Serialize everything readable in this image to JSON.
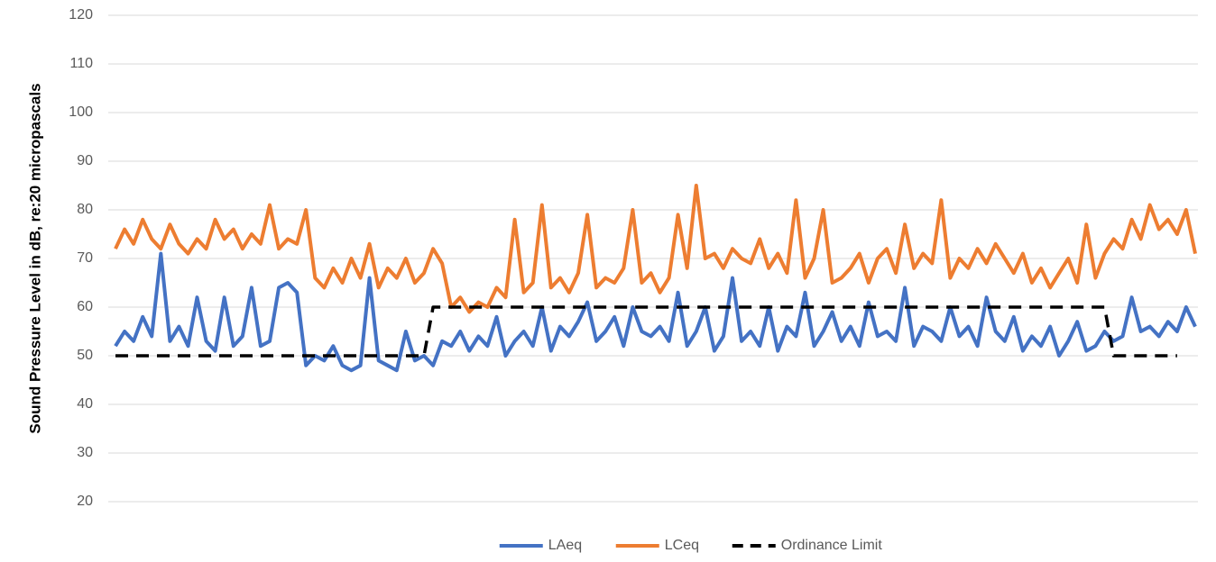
{
  "chart_data": {
    "type": "line",
    "ylabel": "Sound Pressure Level in dB, re:20 micropascals",
    "ylim": [
      20,
      120
    ],
    "yticks": [
      20,
      30,
      40,
      50,
      60,
      70,
      80,
      90,
      100,
      110,
      120
    ],
    "grid": true,
    "legend": "bottom",
    "series": [
      {
        "name": "LAeq",
        "color": "#4472c4",
        "values": [
          52,
          55,
          53,
          58,
          54,
          71,
          53,
          56,
          52,
          62,
          53,
          51,
          62,
          52,
          54,
          64,
          52,
          53,
          64,
          65,
          63,
          48,
          50,
          49,
          52,
          48,
          47,
          48,
          66,
          49,
          48,
          47,
          55,
          49,
          50,
          48,
          53,
          52,
          55,
          51,
          54,
          52,
          58,
          50,
          53,
          55,
          52,
          60,
          51,
          56,
          54,
          57,
          61,
          53,
          55,
          58,
          52,
          60,
          55,
          54,
          56,
          53,
          63,
          52,
          55,
          60,
          51,
          54,
          66,
          53,
          55,
          52,
          60,
          51,
          56,
          54,
          63,
          52,
          55,
          59,
          53,
          56,
          52,
          61,
          54,
          55,
          53,
          64,
          52,
          56,
          55,
          53,
          60,
          54,
          56,
          52,
          62,
          55,
          53,
          58,
          51,
          54,
          52,
          56,
          50,
          53,
          57,
          51,
          52,
          55,
          53,
          54,
          62,
          55,
          56,
          54,
          57,
          55,
          60,
          56
        ]
      },
      {
        "name": "LCeq",
        "color": "#ed7d31",
        "values": [
          72,
          76,
          73,
          78,
          74,
          72,
          77,
          73,
          71,
          74,
          72,
          78,
          74,
          76,
          72,
          75,
          73,
          81,
          72,
          74,
          73,
          80,
          66,
          64,
          68,
          65,
          70,
          66,
          73,
          64,
          68,
          66,
          70,
          65,
          67,
          72,
          69,
          60,
          62,
          59,
          61,
          60,
          64,
          62,
          78,
          63,
          65,
          81,
          64,
          66,
          63,
          67,
          79,
          64,
          66,
          65,
          68,
          80,
          65,
          67,
          63,
          66,
          79,
          68,
          85,
          70,
          71,
          68,
          72,
          70,
          69,
          74,
          68,
          71,
          67,
          82,
          66,
          70,
          80,
          65,
          66,
          68,
          71,
          65,
          70,
          72,
          67,
          77,
          68,
          71,
          69,
          82,
          66,
          70,
          68,
          72,
          69,
          73,
          70,
          67,
          71,
          65,
          68,
          64,
          67,
          70,
          65,
          77,
          66,
          71,
          74,
          72,
          78,
          74,
          81,
          76,
          78,
          75,
          80,
          71
        ]
      },
      {
        "name": "Ordinance Limit",
        "color": "#000000",
        "dashed": true,
        "values": [
          50,
          50,
          50,
          50,
          50,
          50,
          50,
          50,
          50,
          50,
          50,
          50,
          50,
          50,
          50,
          50,
          50,
          50,
          50,
          50,
          50,
          50,
          50,
          50,
          50,
          50,
          50,
          50,
          50,
          50,
          50,
          50,
          50,
          50,
          50,
          60,
          60,
          60,
          60,
          60,
          60,
          60,
          60,
          60,
          60,
          60,
          60,
          60,
          60,
          60,
          60,
          60,
          60,
          60,
          60,
          60,
          60,
          60,
          60,
          60,
          60,
          60,
          60,
          60,
          60,
          60,
          60,
          60,
          60,
          60,
          60,
          60,
          60,
          60,
          60,
          60,
          60,
          60,
          60,
          60,
          60,
          60,
          60,
          60,
          60,
          60,
          60,
          60,
          60,
          60,
          60,
          60,
          60,
          60,
          60,
          60,
          60,
          60,
          60,
          60,
          60,
          60,
          60,
          60,
          60,
          60,
          60,
          60,
          60,
          60,
          50,
          50,
          50,
          50,
          50,
          50,
          50,
          50,
          null,
          null
        ]
      }
    ]
  }
}
